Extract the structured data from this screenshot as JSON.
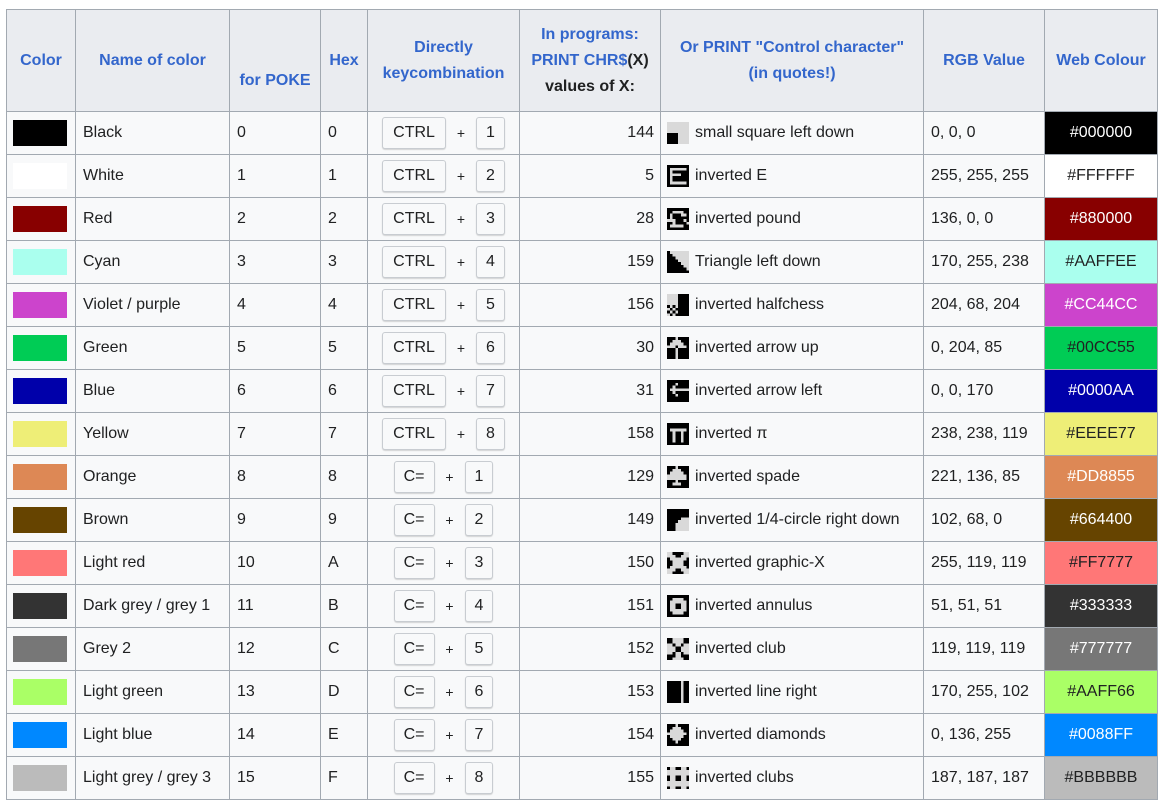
{
  "headers": {
    "color": "Color",
    "name": "Name of color",
    "poke": "for POKE",
    "hex": "Hex",
    "keycombo": [
      "Directly",
      "keycombination"
    ],
    "programs_line1": "In programs:",
    "programs_line2": "PRINT CHR$",
    "programs_x": "(X)",
    "programs_line3": "values of X:",
    "control": [
      "Or PRINT \"Control character\"",
      "(in quotes!)"
    ],
    "rgb": "RGB Value",
    "web": "Web Colour"
  },
  "plus_sign": "+",
  "rows": [
    {
      "swatch": "#000000",
      "name": "Black",
      "poke": "0",
      "hex": "0",
      "mod": "CTRL",
      "key": "1",
      "chr": "144",
      "glyph": "small-square-left-down-icon",
      "ctrl": "small square left down",
      "rgb": "0, 0, 0",
      "web": "#000000",
      "web_text": "#ffffff"
    },
    {
      "swatch": "#FFFFFF",
      "name": "White",
      "poke": "1",
      "hex": "1",
      "mod": "CTRL",
      "key": "2",
      "chr": "5",
      "glyph": "inverted-e-icon",
      "ctrl": "inverted E",
      "rgb": "255, 255, 255",
      "web": "#FFFFFF",
      "web_text": "#202122"
    },
    {
      "swatch": "#880000",
      "name": "Red",
      "poke": "2",
      "hex": "2",
      "mod": "CTRL",
      "key": "3",
      "chr": "28",
      "glyph": "inverted-pound-icon",
      "ctrl": "inverted pound",
      "rgb": "136, 0, 0",
      "web": "#880000",
      "web_text": "#ffffff"
    },
    {
      "swatch": "#AAFFEE",
      "name": "Cyan",
      "poke": "3",
      "hex": "3",
      "mod": "CTRL",
      "key": "4",
      "chr": "159",
      "glyph": "triangle-left-down-icon",
      "ctrl": "Triangle left down",
      "rgb": "170, 255, 238",
      "web": "#AAFFEE",
      "web_text": "#202122"
    },
    {
      "swatch": "#CC44CC",
      "name": "Violet / purple",
      "poke": "4",
      "hex": "4",
      "mod": "CTRL",
      "key": "5",
      "chr": "156",
      "glyph": "inverted-halfchess-icon",
      "ctrl": "inverted halfchess",
      "rgb": "204, 68, 204",
      "web": "#CC44CC",
      "web_text": "#ffffff"
    },
    {
      "swatch": "#00CC55",
      "name": "Green",
      "poke": "5",
      "hex": "5",
      "mod": "CTRL",
      "key": "6",
      "chr": "30",
      "glyph": "inverted-arrow-up-icon",
      "ctrl": "inverted arrow up",
      "rgb": "0, 204, 85",
      "web": "#00CC55",
      "web_text": "#202122"
    },
    {
      "swatch": "#0000AA",
      "name": "Blue",
      "poke": "6",
      "hex": "6",
      "mod": "CTRL",
      "key": "7",
      "chr": "31",
      "glyph": "inverted-arrow-left-icon",
      "ctrl": "inverted arrow left",
      "rgb": "0, 0, 170",
      "web": "#0000AA",
      "web_text": "#ffffff"
    },
    {
      "swatch": "#EEEE77",
      "name": "Yellow",
      "poke": "7",
      "hex": "7",
      "mod": "CTRL",
      "key": "8",
      "chr": "158",
      "glyph": "inverted-pi-icon",
      "ctrl": "inverted π",
      "rgb": "238, 238, 119",
      "web": "#EEEE77",
      "web_text": "#202122"
    },
    {
      "swatch": "#DD8855",
      "name": "Orange",
      "poke": "8",
      "hex": "8",
      "mod": "C=",
      "key": "1",
      "chr": "129",
      "glyph": "inverted-spade-icon",
      "ctrl": "inverted spade",
      "rgb": "221, 136, 85",
      "web": "#DD8855",
      "web_text": "#ffffff"
    },
    {
      "swatch": "#664400",
      "name": "Brown",
      "poke": "9",
      "hex": "9",
      "mod": "C=",
      "key": "2",
      "chr": "149",
      "glyph": "inverted-quarter-circle-icon",
      "ctrl": "inverted 1/4-circle right down",
      "rgb": "102, 68, 0",
      "web": "#664400",
      "web_text": "#ffffff"
    },
    {
      "swatch": "#FF7777",
      "name": "Light red",
      "poke": "10",
      "hex": "A",
      "mod": "C=",
      "key": "3",
      "chr": "150",
      "glyph": "inverted-graphic-x-icon",
      "ctrl": "inverted graphic-X",
      "rgb": "255, 119, 119",
      "web": "#FF7777",
      "web_text": "#202122"
    },
    {
      "swatch": "#333333",
      "name": "Dark grey / grey 1",
      "poke": "11",
      "hex": "B",
      "mod": "C=",
      "key": "4",
      "chr": "151",
      "glyph": "inverted-annulus-icon",
      "ctrl": "inverted annulus",
      "rgb": "51, 51, 51",
      "web": "#333333",
      "web_text": "#ffffff"
    },
    {
      "swatch": "#777777",
      "name": "Grey 2",
      "poke": "12",
      "hex": "C",
      "mod": "C=",
      "key": "5",
      "chr": "152",
      "glyph": "inverted-club-icon",
      "ctrl": "inverted club",
      "rgb": "119, 119, 119",
      "web": "#777777",
      "web_text": "#ffffff"
    },
    {
      "swatch": "#AAFF66",
      "name": "Light green",
      "poke": "13",
      "hex": "D",
      "mod": "C=",
      "key": "6",
      "chr": "153",
      "glyph": "inverted-line-right-icon",
      "ctrl": "inverted line right",
      "rgb": "170, 255, 102",
      "web": "#AAFF66",
      "web_text": "#202122"
    },
    {
      "swatch": "#0088FF",
      "name": "Light blue",
      "poke": "14",
      "hex": "E",
      "mod": "C=",
      "key": "7",
      "chr": "154",
      "glyph": "inverted-diamonds-icon",
      "ctrl": "inverted diamonds",
      "rgb": "0, 136, 255",
      "web": "#0088FF",
      "web_text": "#ffffff"
    },
    {
      "swatch": "#BBBBBB",
      "name": "Light grey / grey 3",
      "poke": "15",
      "hex": "F",
      "mod": "C=",
      "key": "8",
      "chr": "155",
      "glyph": "inverted-clubs-icon",
      "ctrl": "inverted clubs",
      "rgb": "187, 187, 187",
      "web": "#BBBBBB",
      "web_text": "#202122"
    }
  ]
}
